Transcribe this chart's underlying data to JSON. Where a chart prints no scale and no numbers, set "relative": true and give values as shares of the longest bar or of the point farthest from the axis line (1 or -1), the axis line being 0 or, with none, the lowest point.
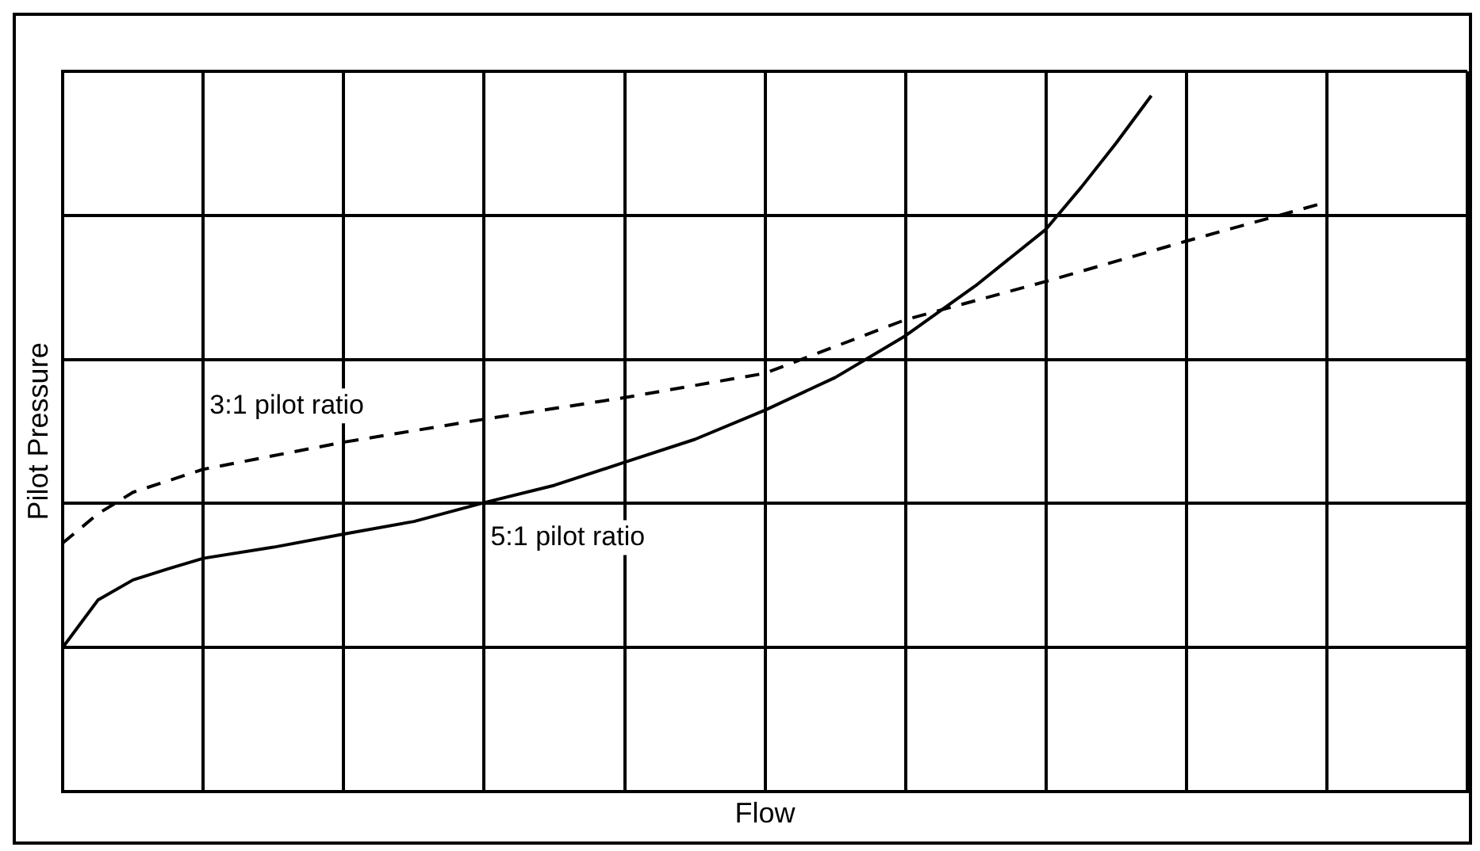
{
  "chart_data": {
    "type": "line",
    "xlabel": "Flow",
    "ylabel": "Pilot Pressure",
    "relative": true,
    "grid": true,
    "legend": false,
    "marker": "none",
    "tick_labels": false,
    "categories": [
      null,
      null,
      null,
      null,
      null,
      null,
      null,
      null,
      null,
      null,
      null,
      null,
      null,
      null,
      null,
      null,
      null,
      null,
      null,
      null,
      null,
      null,
      null,
      null,
      null,
      null,
      null,
      null,
      null,
      null,
      null,
      null,
      null,
      null,
      null,
      null,
      null,
      null,
      null,
      null,
      null
    ],
    "series": [
      {
        "name": "3:1 pilot ratio",
        "color": "#000000",
        "line_style": "dashed",
        "values": [
          0.357,
          0.399,
          0.43,
          null,
          0.463,
          null,
          null,
          null,
          0.502,
          null,
          null,
          null,
          0.535,
          null,
          null,
          null,
          0.566,
          null,
          null,
          null,
          0.601,
          null,
          null,
          null,
          0.678,
          null,
          null,
          null,
          0.733,
          null,
          null,
          null,
          0.791,
          null,
          null,
          null,
          0.847,
          null,
          null,
          null,
          null
        ]
      },
      {
        "name": "5:1 pilot ratio",
        "color": "#000000",
        "line_style": "solid",
        "values": [
          0.207,
          0.275,
          0.304,
          0.32,
          0.335,
          null,
          0.351,
          null,
          0.37,
          null,
          0.388,
          null,
          0.415,
          null,
          0.44,
          null,
          0.473,
          null,
          0.506,
          null,
          0.548,
          null,
          0.595,
          null,
          0.655,
          null,
          0.727,
          null,
          0.808,
          0.868,
          0.932,
          1,
          null,
          null,
          null,
          null,
          null,
          null,
          null,
          null,
          null
        ]
      }
    ]
  }
}
